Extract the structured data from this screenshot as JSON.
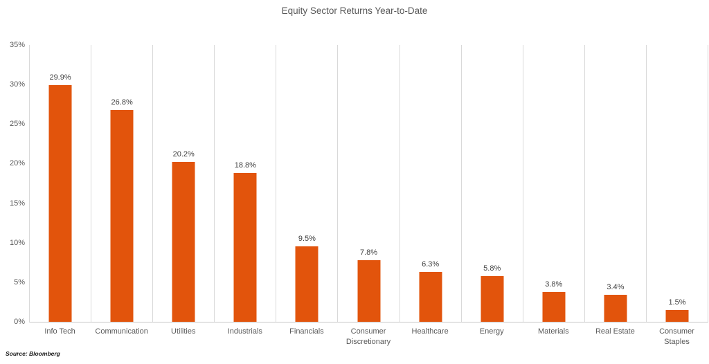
{
  "chart_data": {
    "type": "bar",
    "title": "Equity Sector Returns Year-to-Date",
    "categories": [
      "Info Tech",
      "Communication",
      "Utilities",
      "Industrials",
      "Financials",
      "Consumer Discretionary",
      "Healthcare",
      "Energy",
      "Materials",
      "Real Estate",
      "Consumer Staples"
    ],
    "values": [
      29.9,
      26.8,
      20.2,
      18.8,
      9.5,
      7.8,
      6.3,
      5.8,
      3.8,
      3.4,
      1.5
    ],
    "value_labels": [
      "29.9%",
      "26.8%",
      "20.2%",
      "18.8%",
      "9.5%",
      "7.8%",
      "6.3%",
      "5.8%",
      "3.8%",
      "3.4%",
      "1.5%"
    ],
    "xlabel": "",
    "ylabel": "",
    "ylim": [
      0,
      35
    ],
    "ytick_values": [
      35,
      30,
      25,
      20,
      15,
      10,
      5,
      0
    ],
    "ytick_labels": [
      "35%",
      "30%",
      "25%",
      "20%",
      "15%",
      "10%",
      "5%",
      "0%"
    ],
    "grid": "vertical-category-separators",
    "legend": "none",
    "bar_color": "#e2540c",
    "source": "Source: Bloomberg"
  }
}
